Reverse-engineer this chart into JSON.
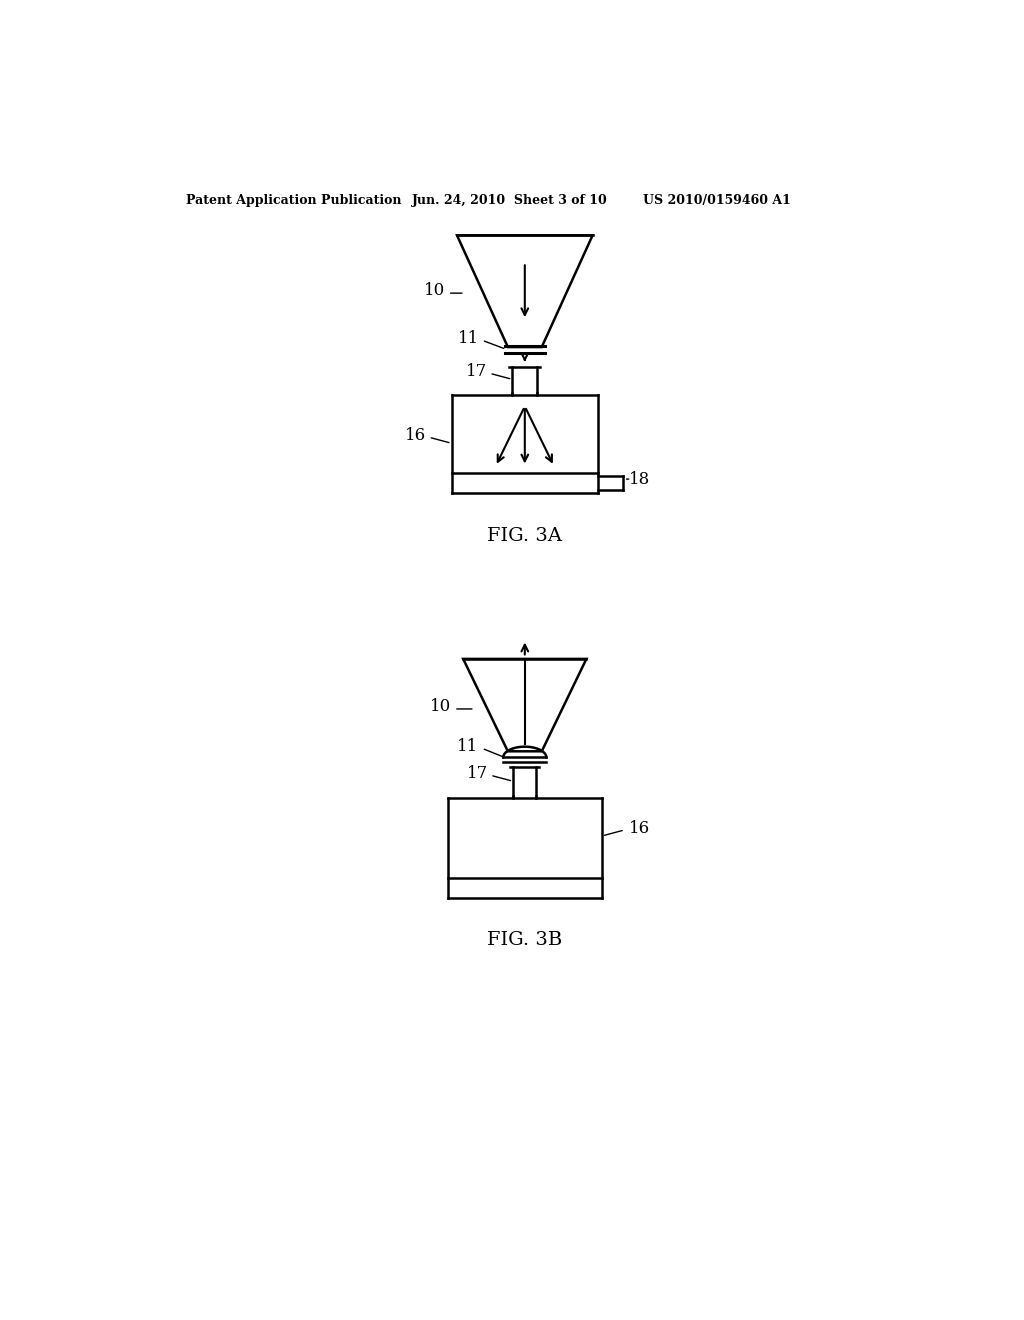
{
  "background_color": "#ffffff",
  "line_color": "#000000",
  "header_text": "Patent Application Publication",
  "header_date": "Jun. 24, 2010  Sheet 3 of 10",
  "header_patent": "US 2010/0159460 A1",
  "fig3a_label": "FIG. 3A",
  "fig3b_label": "FIG. 3B",
  "label_10a": "10",
  "label_11a": "11",
  "label_16a": "16",
  "label_17a": "17",
  "label_18a": "18",
  "label_10b": "10",
  "label_11b": "11",
  "label_16b": "16",
  "label_17b": "17"
}
